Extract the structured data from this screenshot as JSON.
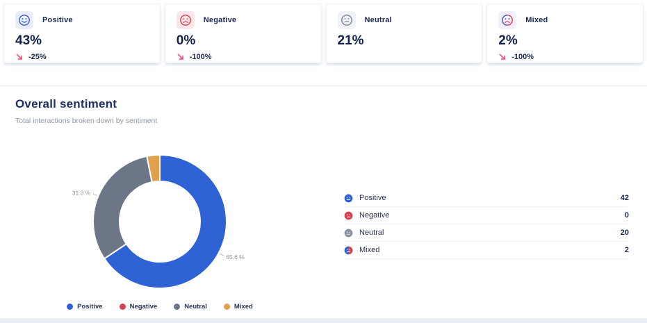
{
  "stat_cards": [
    {
      "label": "Positive",
      "value": "43%",
      "change": "-25%",
      "trend": "down",
      "icon": "smiley-positive",
      "icon_bg": "#e9edfb"
    },
    {
      "label": "Negative",
      "value": "0%",
      "change": "-100%",
      "trend": "down",
      "icon": "smiley-negative",
      "icon_bg": "#fbe7ea"
    },
    {
      "label": "Neutral",
      "value": "21%",
      "change": null,
      "trend": null,
      "icon": "smiley-neutral",
      "icon_bg": "#f1f2f5"
    },
    {
      "label": "Mixed",
      "value": "2%",
      "change": "-100%",
      "trend": "down",
      "icon": "smiley-mixed",
      "icon_bg": "#f4edfb"
    }
  ],
  "chart_data": {
    "type": "pie",
    "subtype": "donut",
    "title": "Overall sentiment",
    "subtitle": "Total interactions broken down by sentiment",
    "categories": [
      "Positive",
      "Negative",
      "Neutral",
      "Mixed"
    ],
    "values": [
      42,
      0,
      20,
      2
    ],
    "percentages": [
      65.6,
      0,
      31.3,
      3.1
    ],
    "slice_labels": [
      "65.6 %",
      "",
      "31.3 %",
      ""
    ],
    "colors": [
      "#2f62d4",
      "#d8414f",
      "#6c7686",
      "#dfa14f"
    ],
    "legend": [
      "Positive",
      "Negative",
      "Neutral",
      "Mixed"
    ],
    "legend_position": "bottom",
    "start_angle_deg": 0,
    "direction": "clockwise"
  },
  "breakdown_list": [
    {
      "label": "Positive",
      "value": 42,
      "icon": "face-positive-filled"
    },
    {
      "label": "Negative",
      "value": 0,
      "icon": "face-negative-filled"
    },
    {
      "label": "Neutral",
      "value": 20,
      "icon": "face-neutral-filled"
    },
    {
      "label": "Mixed",
      "value": 2,
      "icon": "face-mixed-filled"
    }
  ],
  "colors": {
    "positive": "#2f62d4",
    "negative": "#d8414f",
    "neutral": "#6c7686",
    "mixed": "#dfa14f",
    "trend_down": "#ec5a87",
    "title_text": "#1e3164",
    "subtitle_text": "#8e95a4"
  }
}
